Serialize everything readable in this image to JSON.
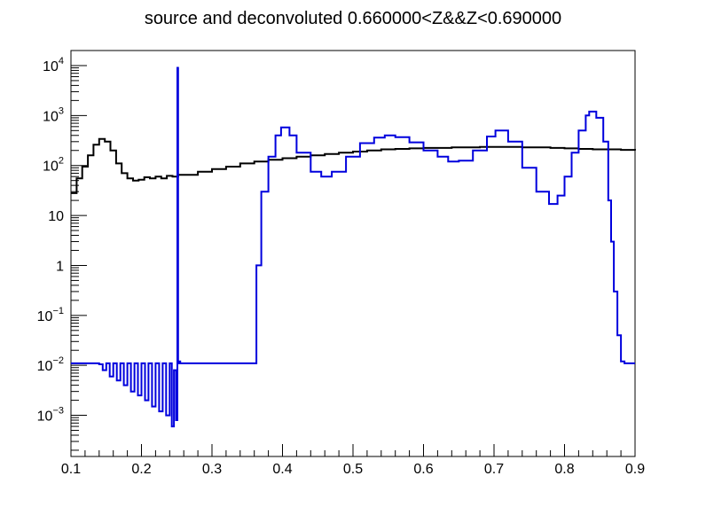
{
  "chart_data": {
    "type": "line",
    "title": "source and deconvoluted 0.660000<Z&&Z<0.690000",
    "xlabel": "",
    "ylabel": "",
    "xlim": [
      0.1,
      0.9
    ],
    "ylim": [
      0.00015,
      20000
    ],
    "yscale": "log",
    "grid": false,
    "x_ticks": [
      {
        "value": 0.1,
        "label": "0.1"
      },
      {
        "value": 0.2,
        "label": "0.2"
      },
      {
        "value": 0.3,
        "label": "0.3"
      },
      {
        "value": 0.4,
        "label": "0.4"
      },
      {
        "value": 0.5,
        "label": "0.5"
      },
      {
        "value": 0.6,
        "label": "0.6"
      },
      {
        "value": 0.7,
        "label": "0.7"
      },
      {
        "value": 0.8,
        "label": "0.8"
      },
      {
        "value": 0.9,
        "label": "0.9"
      }
    ],
    "y_ticks": [
      {
        "value": 0.001,
        "base": "10",
        "exp": "−3"
      },
      {
        "value": 0.01,
        "base": "10",
        "exp": "−2"
      },
      {
        "value": 0.1,
        "base": "10",
        "exp": "−1"
      },
      {
        "value": 1,
        "base": "1",
        "exp": ""
      },
      {
        "value": 10,
        "base": "10",
        "exp": ""
      },
      {
        "value": 100,
        "base": "10",
        "exp": "2"
      },
      {
        "value": 1000,
        "base": "10",
        "exp": "3"
      },
      {
        "value": 10000,
        "base": "10",
        "exp": "4"
      }
    ],
    "series": [
      {
        "color": "#000000",
        "style": "step",
        "x": [
          0.1,
          0.108,
          0.116,
          0.124,
          0.132,
          0.14,
          0.148,
          0.156,
          0.164,
          0.172,
          0.18,
          0.188,
          0.196,
          0.204,
          0.212,
          0.22,
          0.228,
          0.236,
          0.244,
          0.252,
          0.26,
          0.28,
          0.3,
          0.32,
          0.34,
          0.36,
          0.38,
          0.4,
          0.42,
          0.44,
          0.46,
          0.48,
          0.5,
          0.52,
          0.54,
          0.56,
          0.58,
          0.6,
          0.62,
          0.64,
          0.66,
          0.68,
          0.7,
          0.72,
          0.74,
          0.76,
          0.78,
          0.8,
          0.82,
          0.84,
          0.86,
          0.88,
          0.9
        ],
        "y": [
          28,
          55,
          95,
          160,
          260,
          340,
          300,
          200,
          110,
          70,
          55,
          50,
          52,
          58,
          55,
          60,
          55,
          62,
          60,
          65,
          65,
          75,
          85,
          95,
          110,
          120,
          130,
          140,
          150,
          160,
          170,
          180,
          190,
          200,
          210,
          215,
          220,
          225,
          225,
          230,
          230,
          235,
          235,
          235,
          230,
          230,
          225,
          220,
          215,
          210,
          210,
          205,
          200
        ]
      },
      {
        "color": "#0000dd",
        "style": "step",
        "x": [
          0.1,
          0.12,
          0.14,
          0.145,
          0.15,
          0.155,
          0.16,
          0.165,
          0.17,
          0.175,
          0.18,
          0.185,
          0.19,
          0.195,
          0.2,
          0.205,
          0.21,
          0.215,
          0.22,
          0.225,
          0.23,
          0.235,
          0.24,
          0.243,
          0.246,
          0.249,
          0.251,
          0.252,
          0.253,
          0.255,
          0.26,
          0.3,
          0.34,
          0.361,
          0.363,
          0.37,
          0.38,
          0.39,
          0.398,
          0.41,
          0.42,
          0.44,
          0.455,
          0.47,
          0.49,
          0.51,
          0.53,
          0.545,
          0.56,
          0.58,
          0.6,
          0.62,
          0.635,
          0.65,
          0.67,
          0.69,
          0.702,
          0.72,
          0.74,
          0.76,
          0.778,
          0.79,
          0.8,
          0.81,
          0.82,
          0.83,
          0.835,
          0.845,
          0.855,
          0.862,
          0.866,
          0.87,
          0.875,
          0.88,
          0.885,
          0.9
        ],
        "y": [
          0.011,
          0.011,
          0.0105,
          0.008,
          0.011,
          0.006,
          0.011,
          0.005,
          0.011,
          0.004,
          0.011,
          0.003,
          0.011,
          0.0025,
          0.011,
          0.002,
          0.011,
          0.0015,
          0.011,
          0.0012,
          0.011,
          0.001,
          0.011,
          0.0006,
          0.008,
          0.0008,
          9000,
          0.011,
          0.012,
          0.011,
          0.011,
          0.011,
          0.011,
          0.011,
          1,
          30,
          150,
          400,
          580,
          400,
          180,
          75,
          60,
          75,
          150,
          280,
          360,
          400,
          370,
          290,
          200,
          150,
          120,
          125,
          200,
          380,
          500,
          300,
          90,
          30,
          17,
          25,
          60,
          180,
          500,
          1000,
          1200,
          900,
          300,
          20,
          3,
          0.3,
          0.04,
          0.012,
          0.011,
          0.011
        ]
      }
    ]
  }
}
